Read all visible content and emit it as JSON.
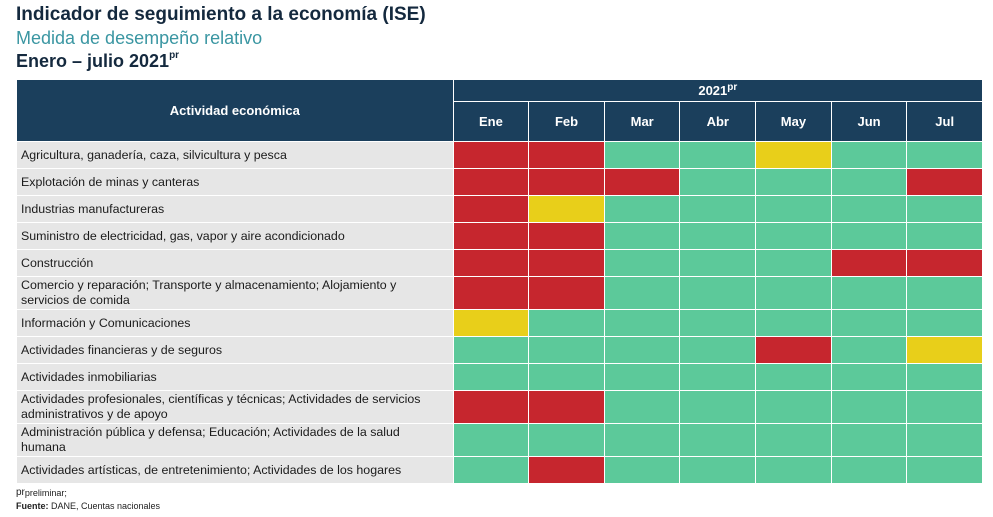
{
  "header": {
    "title": "Indicador de seguimiento a la economía (ISE)",
    "subtitle": "Medida de desempeño relativo",
    "period": "Enero – julio 2021",
    "period_sup": "pr"
  },
  "colors": {
    "red": "#c6262e",
    "yellow": "#e8cf1a",
    "green": "#5cc99a",
    "header_bg": "#1b3f5c",
    "label_bg": "#e6e6e6"
  },
  "chart_data": {
    "type": "table",
    "column_header": "Actividad económica",
    "year_label": "2021",
    "year_sup": "pr",
    "months": [
      "Ene",
      "Feb",
      "Mar",
      "Abr",
      "May",
      "Jun",
      "Jul"
    ],
    "rows": [
      {
        "label": "Agricultura, ganadería, caza, silvicultura y pesca",
        "status": [
          "red",
          "red",
          "green",
          "green",
          "yellow",
          "green",
          "green"
        ]
      },
      {
        "label": "Explotación de minas y canteras",
        "status": [
          "red",
          "red",
          "red",
          "green",
          "green",
          "green",
          "red"
        ]
      },
      {
        "label": "Industrias manufactureras",
        "status": [
          "red",
          "yellow",
          "green",
          "green",
          "green",
          "green",
          "green"
        ]
      },
      {
        "label": "Suministro de electricidad, gas, vapor y aire acondicionado",
        "status": [
          "red",
          "red",
          "green",
          "green",
          "green",
          "green",
          "green"
        ]
      },
      {
        "label": "Construcción",
        "status": [
          "red",
          "red",
          "green",
          "green",
          "green",
          "red",
          "red"
        ]
      },
      {
        "label": "Comercio y reparación; Transporte y almacenamiento; Alojamiento y servicios de comida",
        "status": [
          "red",
          "red",
          "green",
          "green",
          "green",
          "green",
          "green"
        ]
      },
      {
        "label": "Información y Comunicaciones",
        "status": [
          "yellow",
          "green",
          "green",
          "green",
          "green",
          "green",
          "green"
        ]
      },
      {
        "label": "Actividades financieras y de seguros",
        "status": [
          "green",
          "green",
          "green",
          "green",
          "red",
          "green",
          "yellow"
        ]
      },
      {
        "label": "Actividades inmobiliarias",
        "status": [
          "green",
          "green",
          "green",
          "green",
          "green",
          "green",
          "green"
        ]
      },
      {
        "label": "Actividades profesionales, científicas y técnicas; Actividades de servicios administrativos y de apoyo",
        "status": [
          "red",
          "red",
          "green",
          "green",
          "green",
          "green",
          "green"
        ]
      },
      {
        "label": "Administración pública y defensa; Educación; Actividades de la salud humana",
        "status": [
          "green",
          "green",
          "green",
          "green",
          "green",
          "green",
          "green"
        ]
      },
      {
        "label": "Actividades artísticas, de entretenimiento; Actividades de los hogares",
        "status": [
          "green",
          "red",
          "green",
          "green",
          "green",
          "green",
          "green"
        ]
      }
    ]
  },
  "footnote": {
    "prelim_sup": "pr",
    "prelim_text": "preliminar;",
    "source_label": "Fuente:",
    "source_text": " DANE, Cuentas nacionales"
  }
}
